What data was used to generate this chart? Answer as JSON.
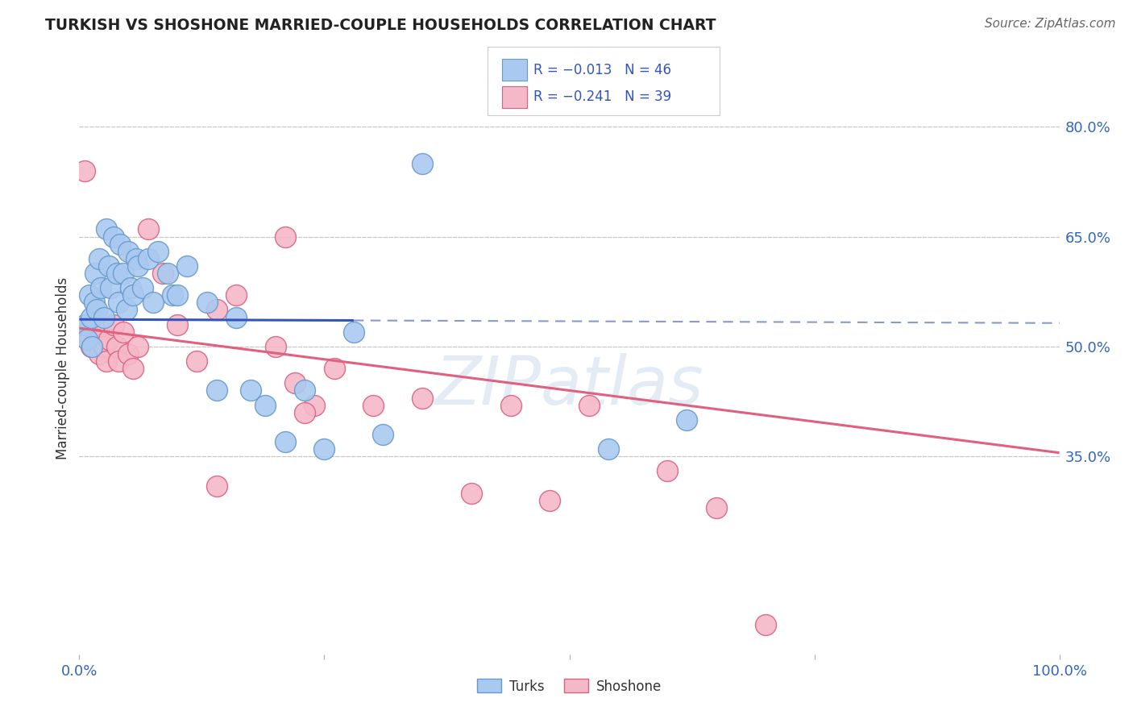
{
  "title": "TURKISH VS SHOSHONE MARRIED-COUPLE HOUSEHOLDS CORRELATION CHART",
  "source": "Source: ZipAtlas.com",
  "ylabel": "Married-couple Households",
  "legend_turks_label": "Turks",
  "legend_shoshone_label": "Shoshone",
  "turks_R": -0.013,
  "turks_N": 46,
  "shoshone_R": -0.241,
  "shoshone_N": 39,
  "xlim": [
    0.0,
    1.0
  ],
  "ylim": [
    0.08,
    0.86
  ],
  "yticks": [
    0.35,
    0.5,
    0.65,
    0.8
  ],
  "ytick_labels": [
    "35.0%",
    "50.0%",
    "65.0%",
    "80.0%"
  ],
  "xticks": [
    0.0,
    0.25,
    0.5,
    0.75,
    1.0
  ],
  "xtick_labels": [
    "0.0%",
    "",
    "",
    "",
    "100.0%"
  ],
  "grid_color": "#c8c8c8",
  "background_color": "#ffffff",
  "turks_color": "#aac9f0",
  "turks_edge_color": "#6699cc",
  "shoshone_color": "#f5b8c8",
  "shoshone_edge_color": "#d96080",
  "turks_line_color": "#3355bb",
  "turks_line_color_dash": "#8899cc",
  "shoshone_line_color": "#e06080",
  "watermark_text": "ZIPatlas",
  "turks_x": [
    0.005,
    0.008,
    0.01,
    0.012,
    0.013,
    0.015,
    0.016,
    0.018,
    0.02,
    0.022,
    0.025,
    0.028,
    0.03,
    0.032,
    0.035,
    0.038,
    0.04,
    0.042,
    0.045,
    0.048,
    0.05,
    0.052,
    0.055,
    0.058,
    0.06,
    0.065,
    0.07,
    0.075,
    0.08,
    0.09,
    0.095,
    0.1,
    0.11,
    0.13,
    0.14,
    0.16,
    0.175,
    0.19,
    0.21,
    0.23,
    0.25,
    0.28,
    0.31,
    0.35,
    0.54,
    0.62
  ],
  "turks_y": [
    0.53,
    0.51,
    0.57,
    0.54,
    0.5,
    0.56,
    0.6,
    0.55,
    0.62,
    0.58,
    0.54,
    0.66,
    0.61,
    0.58,
    0.65,
    0.6,
    0.56,
    0.64,
    0.6,
    0.55,
    0.63,
    0.58,
    0.57,
    0.62,
    0.61,
    0.58,
    0.62,
    0.56,
    0.63,
    0.6,
    0.57,
    0.57,
    0.61,
    0.56,
    0.44,
    0.54,
    0.44,
    0.42,
    0.37,
    0.44,
    0.36,
    0.52,
    0.38,
    0.75,
    0.36,
    0.4
  ],
  "shoshone_x": [
    0.005,
    0.008,
    0.01,
    0.012,
    0.015,
    0.018,
    0.02,
    0.025,
    0.028,
    0.03,
    0.035,
    0.038,
    0.04,
    0.045,
    0.05,
    0.055,
    0.06,
    0.07,
    0.085,
    0.1,
    0.12,
    0.14,
    0.16,
    0.2,
    0.22,
    0.24,
    0.26,
    0.3,
    0.35,
    0.4,
    0.44,
    0.48,
    0.52,
    0.6,
    0.65,
    0.7,
    0.21,
    0.23,
    0.14
  ],
  "shoshone_y": [
    0.74,
    0.52,
    0.51,
    0.5,
    0.53,
    0.51,
    0.49,
    0.5,
    0.48,
    0.51,
    0.53,
    0.5,
    0.48,
    0.52,
    0.49,
    0.47,
    0.5,
    0.66,
    0.6,
    0.53,
    0.48,
    0.55,
    0.57,
    0.5,
    0.45,
    0.42,
    0.47,
    0.42,
    0.43,
    0.3,
    0.42,
    0.29,
    0.42,
    0.33,
    0.28,
    0.12,
    0.65,
    0.41,
    0.31
  ]
}
